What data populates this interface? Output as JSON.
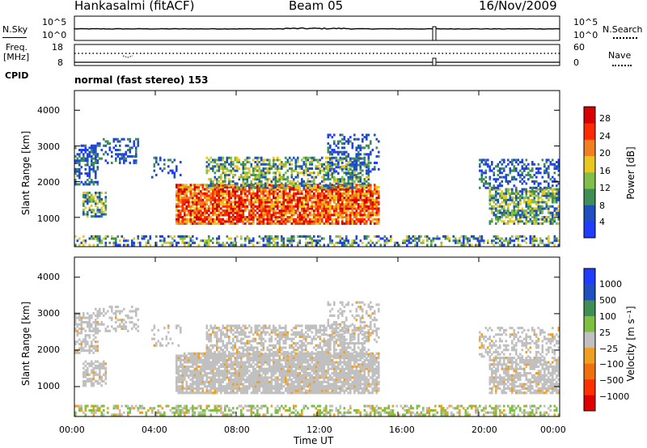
{
  "header": {
    "station": "Hankasalmi (fitACF)",
    "beam": "Beam 05",
    "date": "16/Nov/2009"
  },
  "strip": {
    "nsky_label": "N.Sky",
    "nsearch_label": "N.Search",
    "left_ticks_top": [
      "10^5",
      "10^0"
    ],
    "right_ticks_top": [
      "10^5",
      "10^0"
    ],
    "freq_label_1": "Freq.",
    "freq_label_2": "[MHz]",
    "freq_ticks": [
      "18",
      "8"
    ],
    "nave_ticks": [
      "60",
      "0"
    ],
    "nave_label": "Nave",
    "cpid_label": "CPID",
    "program": "normal (fast stereo) 153"
  },
  "chart_data": [
    {
      "type": "heatmap",
      "name": "power",
      "ylabel": "Slant Range [km]",
      "xlabel": "Time UT",
      "y_ticks": [
        "1000",
        "2000",
        "3000",
        "4000"
      ],
      "ylim": [
        180,
        4550
      ],
      "colorbar_label": "Power [dB]",
      "colorbar_ticks": [
        "4",
        "8",
        "12",
        "16",
        "20",
        "24",
        "28"
      ],
      "colorbar_colors": [
        "#1f3cff",
        "#2050c0",
        "#3f8f55",
        "#7fbf4a",
        "#e8c820",
        "#f08020",
        "#ff2a00",
        "#d80000"
      ]
    },
    {
      "type": "heatmap",
      "name": "velocity",
      "ylabel": "Slant Range [km]",
      "xlabel": "Time UT",
      "y_ticks": [
        "1000",
        "2000",
        "3000",
        "4000"
      ],
      "ylim": [
        180,
        4550
      ],
      "colorbar_label": "Velocity [m s⁻¹]",
      "colorbar_ticks": [
        "1000",
        "500",
        "100",
        "25",
        "−25",
        "−100",
        "−500",
        "−1000"
      ],
      "colorbar_colors": [
        "#1f3cff",
        "#2050c0",
        "#3f8f55",
        "#7fc040",
        "#c0c0c0",
        "#f0a020",
        "#f07010",
        "#ff3000",
        "#e00000"
      ]
    }
  ],
  "x_axis": {
    "label": "Time UT",
    "ticks": [
      "00:00",
      "04:00",
      "08:00",
      "12:00",
      "16:00",
      "20:00",
      "00:00"
    ]
  }
}
